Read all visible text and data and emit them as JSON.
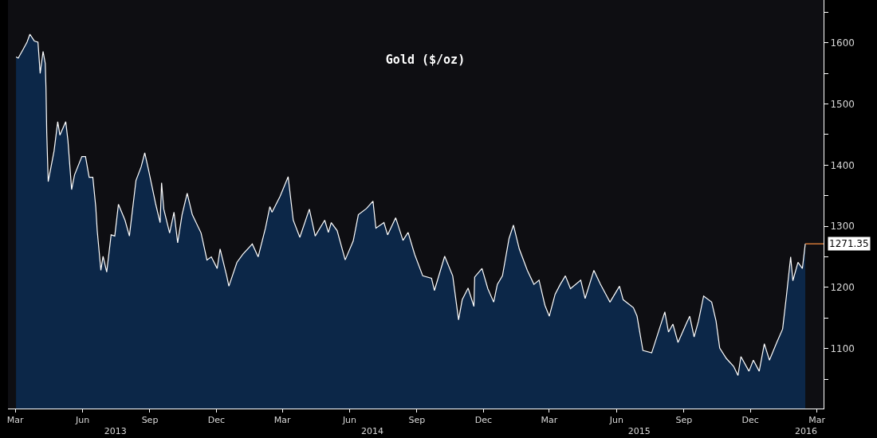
{
  "chart_data": {
    "type": "area",
    "title": "Gold ($/oz)",
    "x": [
      "2013-03-02",
      "2013-03-05",
      "2013-03-12",
      "2013-03-17",
      "2013-03-21",
      "2013-03-27",
      "2013-04-01",
      "2013-04-04",
      "2013-04-08",
      "2013-04-11",
      "2013-04-12",
      "2013-04-13",
      "2013-04-15",
      "2013-04-23",
      "2013-04-28",
      "2013-05-01",
      "2013-05-09",
      "2013-05-12",
      "2013-05-17",
      "2013-05-21",
      "2013-05-31",
      "2013-06-05",
      "2013-06-10",
      "2013-06-15",
      "2013-06-19",
      "2013-06-21",
      "2013-06-26",
      "2013-06-29",
      "2013-07-04",
      "2013-07-10",
      "2013-07-15",
      "2013-07-20",
      "2013-07-29",
      "2013-08-04",
      "2013-08-13",
      "2013-08-20",
      "2013-08-25",
      "2013-08-30",
      "2013-09-09",
      "2013-09-15",
      "2013-09-17",
      "2013-09-20",
      "2013-09-28",
      "2013-10-04",
      "2013-10-09",
      "2013-10-15",
      "2013-10-22",
      "2013-10-29",
      "2013-11-10",
      "2013-11-18",
      "2013-11-24",
      "2013-12-02",
      "2013-12-06",
      "2013-12-15",
      "2013-12-18",
      "2013-12-29",
      "2014-01-06",
      "2014-01-19",
      "2014-01-27",
      "2014-02-06",
      "2014-02-12",
      "2014-02-15",
      "2014-02-26",
      "2014-03-09",
      "2014-03-16",
      "2014-03-25",
      "2014-04-07",
      "2014-04-15",
      "2014-04-28",
      "2014-05-03",
      "2014-05-07",
      "2014-05-15",
      "2014-05-26",
      "2014-06-06",
      "2014-06-13",
      "2014-06-24",
      "2014-07-03",
      "2014-07-07",
      "2014-07-18",
      "2014-07-23",
      "2014-08-03",
      "2014-08-13",
      "2014-08-20",
      "2014-08-29",
      "2014-09-09",
      "2014-09-21",
      "2014-09-25",
      "2014-10-09",
      "2014-10-20",
      "2014-10-28",
      "2014-11-02",
      "2014-11-10",
      "2014-11-18",
      "2014-11-19",
      "2014-11-29",
      "2014-12-07",
      "2014-12-15",
      "2014-12-20",
      "2014-12-27",
      "2015-01-05",
      "2015-01-11",
      "2015-01-19",
      "2015-01-30",
      "2015-02-08",
      "2015-02-15",
      "2015-02-23",
      "2015-03-01",
      "2015-03-09",
      "2015-03-16",
      "2015-03-23",
      "2015-03-30",
      "2015-04-13",
      "2015-04-19",
      "2015-05-01",
      "2015-05-10",
      "2015-05-23",
      "2015-06-05",
      "2015-06-10",
      "2015-06-24",
      "2015-06-29",
      "2015-07-07",
      "2015-07-19",
      "2015-07-26",
      "2015-08-06",
      "2015-08-11",
      "2015-08-17",
      "2015-08-24",
      "2015-09-04",
      "2015-09-09",
      "2015-09-15",
      "2015-09-21",
      "2015-09-28",
      "2015-10-09",
      "2015-10-15",
      "2015-10-20",
      "2015-10-29",
      "2015-11-08",
      "2015-11-14",
      "2015-11-18",
      "2015-11-29",
      "2015-12-05",
      "2015-12-13",
      "2015-12-20",
      "2015-12-27",
      "2016-01-06",
      "2016-01-14",
      "2016-01-19",
      "2016-01-25",
      "2016-01-28",
      "2016-02-04",
      "2016-02-10",
      "2016-02-14"
    ],
    "series": [
      {
        "color": "#ffffff",
        "values": [
          1577,
          1575,
          1590,
          1601,
          1614,
          1603,
          1601,
          1550,
          1586,
          1566,
          1524,
          1453,
          1373,
          1423,
          1471,
          1449,
          1471,
          1440,
          1360,
          1384,
          1414,
          1414,
          1380,
          1380,
          1332,
          1293,
          1228,
          1251,
          1225,
          1286,
          1284,
          1336,
          1310,
          1284,
          1375,
          1397,
          1420,
          1393,
          1336,
          1306,
          1371,
          1328,
          1289,
          1323,
          1273,
          1319,
          1354,
          1319,
          1289,
          1245,
          1250,
          1231,
          1263,
          1219,
          1202,
          1241,
          1254,
          1271,
          1250,
          1297,
          1332,
          1323,
          1349,
          1381,
          1310,
          1282,
          1328,
          1284,
          1310,
          1290,
          1306,
          1293,
          1245,
          1276,
          1319,
          1329,
          1341,
          1297,
          1306,
          1286,
          1314,
          1277,
          1290,
          1254,
          1219,
          1215,
          1195,
          1251,
          1219,
          1147,
          1180,
          1199,
          1169,
          1217,
          1231,
          1198,
          1176,
          1205,
          1219,
          1280,
          1302,
          1263,
          1228,
          1205,
          1212,
          1171,
          1153,
          1189,
          1205,
          1219,
          1198,
          1212,
          1182,
          1228,
          1205,
          1176,
          1202,
          1180,
          1167,
          1153,
          1097,
          1093,
          1119,
          1160,
          1127,
          1140,
          1110,
          1140,
          1153,
          1119,
          1145,
          1186,
          1176,
          1145,
          1101,
          1084,
          1071,
          1056,
          1087,
          1063,
          1081,
          1063,
          1108,
          1081,
          1110,
          1132,
          1184,
          1250,
          1211,
          1241,
          1231,
          1271.35
        ]
      }
    ],
    "ref_lines": [
      {
        "axis": "y",
        "value": 1271.35,
        "label": "1271.35",
        "color": "#ff9040"
      }
    ],
    "xlim": [
      "2013-02-19",
      "2016-03-10"
    ],
    "xticks": [
      {
        "value": "2013-03-01",
        "label": "Mar"
      },
      {
        "value": "2013-06-01",
        "label": "Jun"
      },
      {
        "value": "2013-09-01",
        "label": "Sep"
      },
      {
        "value": "2013-12-01",
        "label": "Dec"
      },
      {
        "value": "2014-03-01",
        "label": "Mar"
      },
      {
        "value": "2014-06-01",
        "label": "Jun"
      },
      {
        "value": "2014-09-01",
        "label": "Sep"
      },
      {
        "value": "2014-12-01",
        "label": "Dec"
      },
      {
        "value": "2015-03-01",
        "label": "Mar"
      },
      {
        "value": "2015-06-01",
        "label": "Jun"
      },
      {
        "value": "2015-09-01",
        "label": "Sep"
      },
      {
        "value": "2015-12-01",
        "label": "Dec"
      },
      {
        "value": "2016-03-01",
        "label": "Mar"
      }
    ],
    "x2lim": [
      "2013-02-19",
      "2016-03-10"
    ],
    "x2ticks": [
      {
        "value": "2013-07-16",
        "label": "2013"
      },
      {
        "value": "2014-07-02",
        "label": "2014"
      },
      {
        "value": "2015-07-02",
        "label": "2015"
      },
      {
        "value": "2016-02-15",
        "label": "2016"
      }
    ],
    "ylim": [
      1002,
      1670
    ],
    "yticks": [
      {
        "value": 1050,
        "label": null
      },
      1100,
      {
        "value": 1150,
        "label": null
      },
      1200,
      {
        "value": 1250,
        "label": null
      },
      1300,
      {
        "value": 1350,
        "label": null
      },
      1400,
      {
        "value": 1450,
        "label": null
      },
      1500,
      {
        "value": 1550,
        "label": null
      },
      1600,
      {
        "value": 1650,
        "label": null
      }
    ],
    "grid": false,
    "legend": false
  }
}
